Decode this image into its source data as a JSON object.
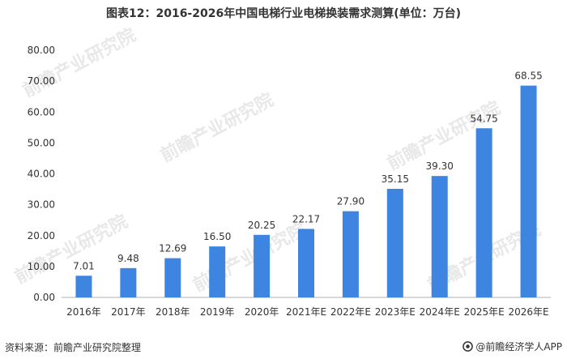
{
  "page": {
    "title": "图表12：2016-2026年中国电梯行业电梯换装需求测算(单位：万台)",
    "source": "资料来源：前瞻产业研究院整理",
    "brand": "@前瞻经济学人APP",
    "watermark": "前瞻产业研究院"
  },
  "colors": {
    "bar": "#3d85e0",
    "axis": "#b0b0b0",
    "text": "#333333"
  },
  "chart_data": {
    "type": "bar",
    "title": "图表12：2016-2026年中国电梯行业电梯换装需求测算(单位：万台)",
    "categories": [
      "2016年",
      "2017年",
      "2018年",
      "2019年",
      "2020年",
      "2021年E",
      "2022年E",
      "2023年E",
      "2024年E",
      "2025年E",
      "2026年E"
    ],
    "values": [
      7.01,
      9.48,
      12.69,
      16.5,
      20.25,
      22.17,
      27.9,
      35.15,
      39.3,
      54.75,
      68.55
    ],
    "value_labels": [
      "7.01",
      "9.48",
      "12.69",
      "16.50",
      "20.25",
      "22.17",
      "27.90",
      "35.15",
      "39.30",
      "54.75",
      "68.55"
    ],
    "ylim": [
      0,
      80
    ],
    "yticks": [
      "0.00",
      "10.00",
      "20.00",
      "30.00",
      "40.00",
      "50.00",
      "60.00",
      "70.00",
      "80.00"
    ],
    "ytick_values": [
      0,
      10,
      20,
      30,
      40,
      50,
      60,
      70,
      80
    ],
    "grid": false,
    "legend": "none"
  }
}
